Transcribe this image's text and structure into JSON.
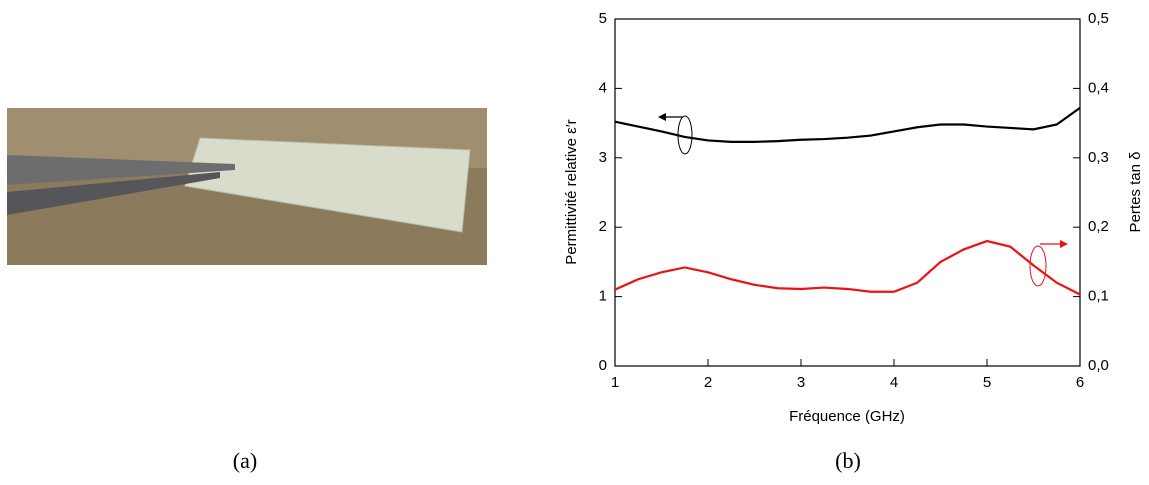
{
  "captions": {
    "left": "(a)",
    "right": "(b)"
  },
  "chart_data": {
    "type": "line",
    "x_label": "Fréquence (GHz)",
    "y_label": "Permittivité relative ε′r",
    "y2_label": "Pertes tan δ",
    "x": [
      1,
      1.25,
      1.5,
      1.75,
      2,
      2.25,
      2.5,
      2.75,
      3,
      3.25,
      3.5,
      3.75,
      4,
      4.25,
      4.5,
      4.75,
      5,
      5.25,
      5.5,
      5.75,
      6
    ],
    "xlim": [
      1,
      6
    ],
    "xticks": [
      1,
      2,
      3,
      4,
      5,
      6
    ],
    "ylim": [
      0,
      5
    ],
    "yticks": [
      0,
      1,
      2,
      3,
      4,
      5
    ],
    "y2lim": [
      0,
      0.5
    ],
    "y2ticks": [
      {
        "value": 0,
        "label": "0,0"
      },
      {
        "value": 0.1,
        "label": "0,1"
      },
      {
        "value": 0.2,
        "label": "0,2"
      },
      {
        "value": 0.3,
        "label": "0,3"
      },
      {
        "value": 0.4,
        "label": "0,4"
      },
      {
        "value": 0.5,
        "label": "0,5"
      }
    ],
    "series": [
      {
        "color": "#000000",
        "values": [
          3.52,
          3.45,
          3.38,
          3.3,
          3.25,
          3.23,
          3.23,
          3.24,
          3.26,
          3.27,
          3.29,
          3.32,
          3.38,
          3.44,
          3.48,
          3.48,
          3.45,
          3.43,
          3.41,
          3.48,
          3.72
        ]
      },
      {
        "color": "#ee1111",
        "axis": "y2",
        "values": [
          0.11,
          0.125,
          0.135,
          0.142,
          0.135,
          0.125,
          0.117,
          0.112,
          0.111,
          0.113,
          0.111,
          0.107,
          0.107,
          0.12,
          0.15,
          0.168,
          0.18,
          0.172,
          0.145,
          0.12,
          0.103
        ]
      }
    ]
  }
}
